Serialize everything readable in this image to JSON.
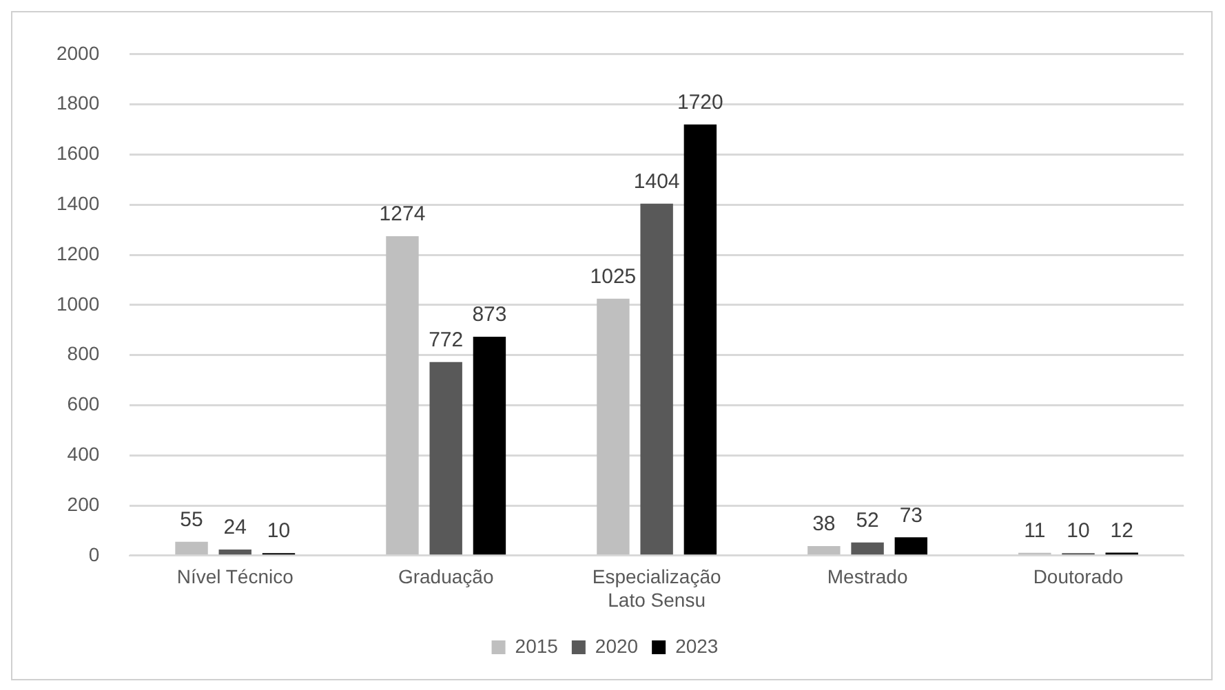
{
  "chart_data": {
    "type": "bar",
    "categories": [
      "Nível Técnico",
      "Graduação",
      "Especialização\nLato Sensu",
      "Mestrado",
      "Doutorado"
    ],
    "series": [
      {
        "name": "2015",
        "color": "#bfbfbf",
        "values": [
          55,
          1274,
          1025,
          38,
          11
        ]
      },
      {
        "name": "2020",
        "color": "#595959",
        "values": [
          24,
          772,
          1404,
          52,
          10
        ]
      },
      {
        "name": "2023",
        "color": "#000000",
        "values": [
          10,
          873,
          1720,
          73,
          12
        ]
      }
    ],
    "ylim": [
      0,
      2000
    ],
    "yticks": [
      0,
      200,
      400,
      600,
      800,
      1000,
      1200,
      1400,
      1600,
      1800,
      2000
    ],
    "grid": "y",
    "legend": "bottom",
    "data_labels": true
  }
}
